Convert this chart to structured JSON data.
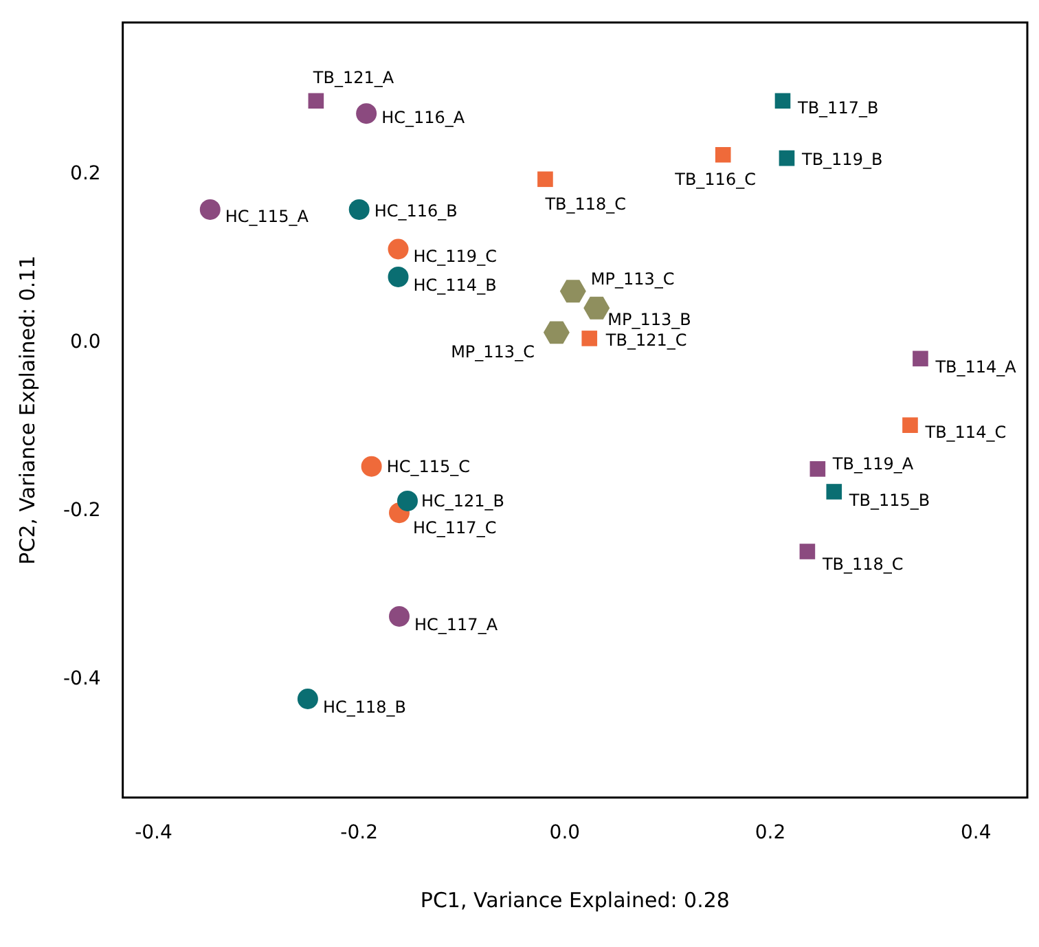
{
  "chart_data": {
    "type": "scatter",
    "xlabel": "PC1, Variance Explained: 0.28",
    "ylabel": "PC2, Variance Explained: 0.11",
    "xlim": [
      -0.43,
      0.45
    ],
    "ylim": [
      -0.54,
      0.38
    ],
    "xticks": [
      -0.4,
      -0.2,
      {
        "value": 0,
        "label": "0.0"
      },
      0.2,
      0.4
    ],
    "yticks": [
      -0.4,
      -0.2,
      {
        "value": 0,
        "label": "0.0"
      },
      0.2
    ],
    "grid": false,
    "legend": false,
    "series": [
      {
        "color": "#8b4a7f",
        "marker": "circle",
        "x": [
          -0.193,
          -0.345,
          -0.161
        ],
        "values": [
          0.272,
          0.158,
          -0.325
        ]
      },
      {
        "color": "#0a6e72",
        "marker": "circle",
        "x": [
          -0.2,
          -0.162,
          -0.153,
          -0.25
        ],
        "values": [
          0.158,
          0.078,
          -0.188,
          -0.423
        ]
      },
      {
        "color": "#ef6a3a",
        "marker": "circle",
        "x": [
          -0.162,
          -0.188,
          -0.161
        ],
        "values": [
          0.111,
          -0.147,
          -0.202
        ]
      },
      {
        "color": "#8b4a7f",
        "marker": "square",
        "x": [
          -0.242,
          0.346,
          0.246,
          0.236
        ],
        "values": [
          0.287,
          -0.019,
          -0.15,
          -0.248
        ]
      },
      {
        "color": "#0a6e72",
        "marker": "square",
        "x": [
          0.212,
          0.216,
          0.262
        ],
        "values": [
          0.287,
          0.219,
          -0.177
        ]
      },
      {
        "color": "#ef6a3a",
        "marker": "square",
        "x": [
          0.154,
          -0.019,
          0.024,
          0.336
        ],
        "values": [
          0.223,
          0.194,
          0.005,
          -0.098
        ]
      },
      {
        "color": "#8f8f5e",
        "x": [
          0.008,
          0.031,
          -0.008
        ],
        "values": [
          0.061,
          0.041,
          0.012
        ]
      }
    ],
    "annotations": [
      {
        "text": "HC_116_A",
        "x": -0.193,
        "y": 0.272
      },
      {
        "text": "HC_115_A",
        "x": -0.345,
        "y": 0.158
      },
      {
        "text": "HC_117_A",
        "x": -0.161,
        "y": -0.325
      },
      {
        "text": "HC_116_B",
        "x": -0.2,
        "y": 0.158
      },
      {
        "text": "HC_114_B",
        "x": -0.162,
        "y": 0.078
      },
      {
        "text": "HC_121_B",
        "x": -0.153,
        "y": -0.188
      },
      {
        "text": "HC_118_B",
        "x": -0.25,
        "y": -0.423
      },
      {
        "text": "HC_119_C",
        "x": -0.162,
        "y": 0.111
      },
      {
        "text": "HC_115_C",
        "x": -0.188,
        "y": -0.147
      },
      {
        "text": "HC_117_C",
        "x": -0.161,
        "y": -0.202
      },
      {
        "text": "TB_121_A",
        "x": -0.242,
        "y": 0.287
      },
      {
        "text": "TB_114_A",
        "x": 0.346,
        "y": -0.019
      },
      {
        "text": "TB_119_A",
        "x": 0.246,
        "y": -0.15
      },
      {
        "text": "TB_118_C",
        "x": 0.236,
        "y": -0.248
      },
      {
        "text": "TB_117_B",
        "x": 0.212,
        "y": 0.287
      },
      {
        "text": "TB_119_B",
        "x": 0.216,
        "y": 0.219
      },
      {
        "text": "TB_115_B",
        "x": 0.262,
        "y": -0.177
      },
      {
        "text": "TB_116_C",
        "x": 0.154,
        "y": 0.223
      },
      {
        "text": "TB_118_C",
        "x": -0.019,
        "y": 0.194
      },
      {
        "text": "TB_121_C",
        "x": 0.024,
        "y": 0.005
      },
      {
        "text": "TB_114_C",
        "x": 0.336,
        "y": -0.098
      },
      {
        "text": "MP_113_C",
        "x": 0.008,
        "y": 0.061
      },
      {
        "text": "MP_113_B",
        "x": 0.031,
        "y": 0.041
      },
      {
        "text": "MP_113_C",
        "x": -0.008,
        "y": 0.012
      }
    ]
  }
}
